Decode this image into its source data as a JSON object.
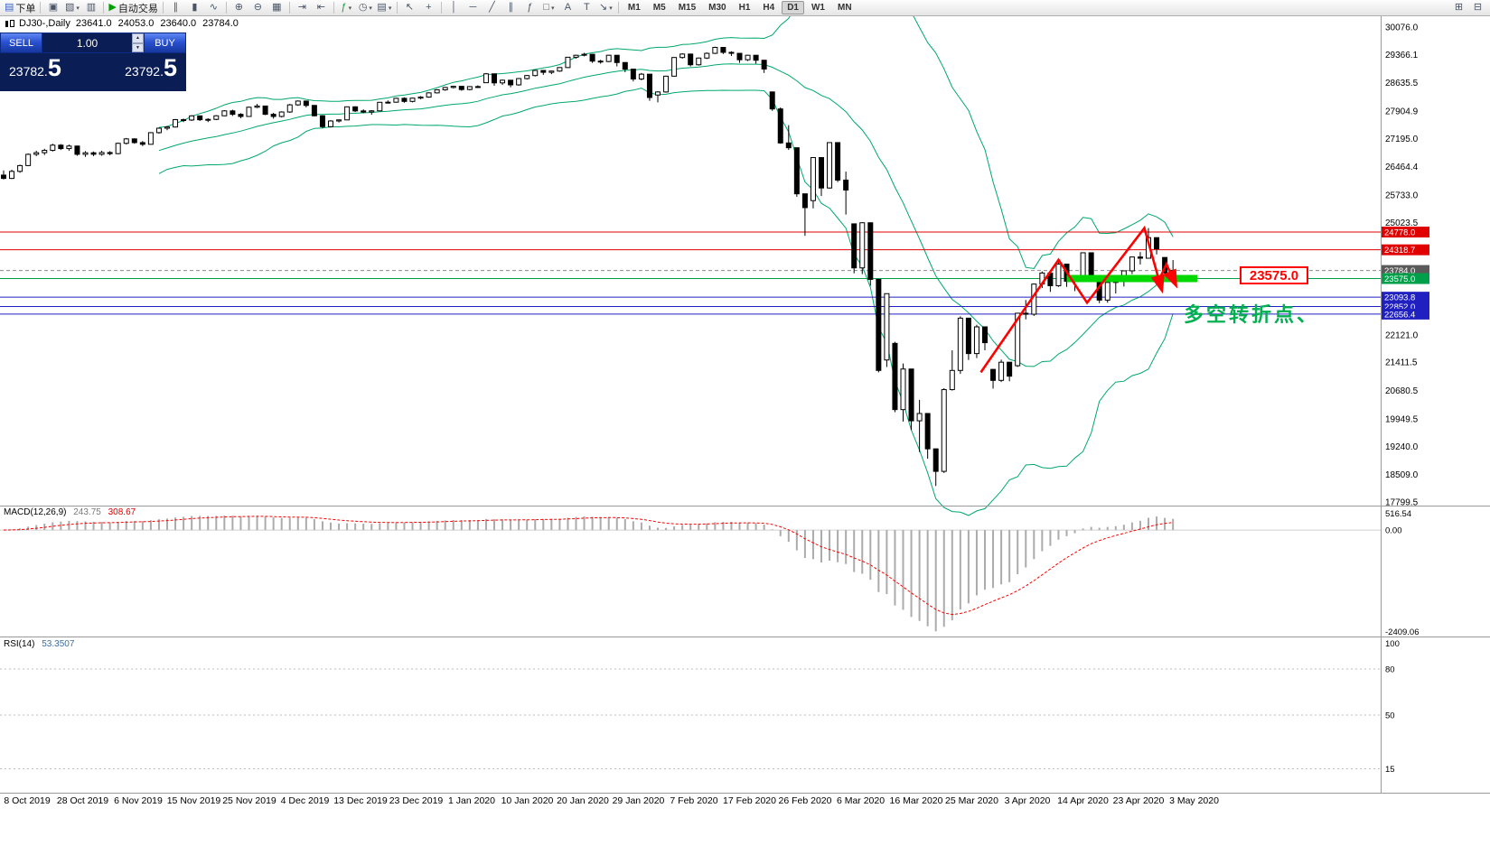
{
  "toolbar": {
    "timeframes": [
      "M1",
      "M5",
      "M15",
      "M30",
      "H1",
      "H4",
      "D1",
      "W1",
      "MN"
    ],
    "active_timeframe": "D1",
    "items": [
      {
        "type": "btn",
        "name": "new-order",
        "icon": "▤",
        "color": "#3a62c8",
        "label": "下单"
      },
      {
        "type": "sep"
      },
      {
        "type": "btn",
        "name": "chart-window",
        "icon": "▣"
      },
      {
        "type": "btn",
        "name": "profiles",
        "icon": "▧",
        "caret": true
      },
      {
        "type": "btn",
        "name": "terminal-window",
        "icon": "▥"
      },
      {
        "type": "sep"
      },
      {
        "type": "btn",
        "name": "autotrading",
        "icon": "▶",
        "color": "#00a000",
        "label": "自动交易"
      },
      {
        "type": "sep"
      },
      {
        "type": "btn",
        "name": "bar-chart",
        "icon": "∥"
      },
      {
        "type": "btn",
        "name": "candlestick-chart",
        "icon": "▮"
      },
      {
        "type": "btn",
        "name": "line-chart",
        "icon": "∿"
      },
      {
        "type": "sep"
      },
      {
        "type": "btn",
        "name": "zoom-in",
        "icon": "⊕"
      },
      {
        "type": "btn",
        "name": "zoom-out",
        "icon": "⊖"
      },
      {
        "type": "btn",
        "name": "tile-windows",
        "icon": "▦"
      },
      {
        "type": "sep"
      },
      {
        "type": "btn",
        "name": "auto-scroll",
        "icon": "⇥"
      },
      {
        "type": "btn",
        "name": "chart-shift",
        "icon": "⇤"
      },
      {
        "type": "sep"
      },
      {
        "type": "btn",
        "name": "indicators",
        "icon": "ƒ",
        "color": "#1c9c3c",
        "caret": true
      },
      {
        "type": "btn",
        "name": "periods",
        "icon": "◷",
        "caret": true
      },
      {
        "type": "btn",
        "name": "templates",
        "icon": "▤",
        "caret": true
      },
      {
        "type": "sep"
      },
      {
        "type": "btn",
        "name": "cursor",
        "icon": "↖"
      },
      {
        "type": "btn",
        "name": "crosshair",
        "icon": "+"
      },
      {
        "type": "sep"
      },
      {
        "type": "btn",
        "name": "vertical-line",
        "icon": "│"
      },
      {
        "type": "btn",
        "name": "horizontal-line",
        "icon": "─"
      },
      {
        "type": "btn",
        "name": "trendline",
        "icon": "╱"
      },
      {
        "type": "btn",
        "name": "equidistant-channel",
        "icon": "∥"
      },
      {
        "type": "btn",
        "name": "fibonacci",
        "icon": "ƒ"
      },
      {
        "type": "btn",
        "name": "shapes",
        "icon": "□",
        "caret": true
      },
      {
        "type": "btn",
        "name": "text",
        "icon": "A"
      },
      {
        "type": "btn",
        "name": "text-label",
        "icon": "T"
      },
      {
        "type": "btn",
        "name": "arrows",
        "icon": "↘",
        "caret": true
      },
      {
        "type": "sep"
      },
      {
        "type": "timeframes"
      },
      {
        "type": "spacer"
      },
      {
        "type": "btn",
        "name": "docking",
        "icon": "⊞"
      },
      {
        "type": "btn",
        "name": "help",
        "icon": "⊟"
      }
    ]
  },
  "chart_header": {
    "symbol": "DJ30-,Daily",
    "open": "23641.0",
    "high": "24053.0",
    "low": "23640.0",
    "close": "23784.0"
  },
  "trade_panel": {
    "sell_label": "SELL",
    "buy_label": "BUY",
    "volume": "1.00",
    "spinner_up": "▲",
    "spinner_down": "▼",
    "sell_price": "23782.",
    "sell_pip": "5",
    "buy_price": "23792.",
    "buy_pip": "5"
  },
  "annotations": {
    "price_callout": "23575.0",
    "turning_point": "多空转折点、"
  },
  "macd_panel": {
    "label": "MACD(12,26,9)",
    "main_value": "243.75",
    "signal_value": "308.67",
    "scale": [
      "516.54",
      "0.00",
      "-2409.06"
    ]
  },
  "rsi_panel": {
    "label": "RSI(14)",
    "value": "53.3507",
    "scale": [
      "100",
      "80",
      "50",
      "15"
    ]
  },
  "chart_data": {
    "type": "candlestick",
    "symbol": "DJ30-",
    "timeframe": "Daily",
    "ylim": [
      17706,
      30403
    ],
    "y_ticks": [
      30076.0,
      29366.1,
      28635.5,
      27904.9,
      27195.0,
      26464.4,
      25733.0,
      25023.5,
      22121.0,
      21411.5,
      20680.5,
      19949.5,
      19240.0,
      18509.0,
      17799.5
    ],
    "price_levels": [
      {
        "value": 24778.0,
        "label": "24778.0",
        "color": "#e00000",
        "type": "line"
      },
      {
        "value": 24318.7,
        "label": "24318.7",
        "color": "#e00000",
        "type": "line"
      },
      {
        "value": 23784.0,
        "label": "23784.0",
        "color": "#5a5a5a",
        "type": "bid"
      },
      {
        "value": 23575.0,
        "label": "23575.0",
        "color": "#00a04a",
        "type": "line"
      },
      {
        "value": 23093.8,
        "label": "23093.8",
        "color": "#2020c0",
        "type": "line"
      },
      {
        "value": 22852.0,
        "label": "22852.0",
        "color": "#2020c0",
        "type": "line"
      },
      {
        "value": 22656.4,
        "label": "22656.4",
        "color": "#2020c0",
        "type": "line"
      }
    ],
    "x_labels": [
      "8 Oct 2019",
      "28 Oct 2019",
      "6 Nov 2019",
      "15 Nov 2019",
      "25 Nov 2019",
      "4 Dec 2019",
      "13 Dec 2019",
      "23 Dec 2019",
      "1 Jan 2020",
      "10 Jan 2020",
      "20 Jan 2020",
      "29 Jan 2020",
      "7 Feb 2020",
      "17 Feb 2020",
      "26 Feb 2020",
      "6 Mar 2020",
      "16 Mar 2020",
      "25 Mar 2020",
      "3 Apr 2020",
      "14 Apr 2020",
      "23 Apr 2020",
      "3 May 2020"
    ],
    "indicators": {
      "bollinger": {
        "period": 20,
        "deviation": 2,
        "color": "#00a86b"
      },
      "macd": {
        "fast": 12,
        "slow": 26,
        "signal": 9,
        "scale_max": 516.54,
        "scale_min": -2409.06,
        "histogram_color": "#ababab",
        "signal_color": "#ff0000"
      },
      "rsi": {
        "period": 14,
        "levels": [
          80,
          50,
          15
        ],
        "color": "#4f81bd"
      }
    },
    "drawings": {
      "support_bar": {
        "price": 23575.0,
        "from_index": 130,
        "to_x": 1325,
        "color": "#00d800"
      },
      "zigzags": [
        {
          "color": "#ff0000",
          "points": [
            [
              119.5,
              21150
            ],
            [
              129,
              24060
            ],
            [
              132.5,
              22950
            ],
            [
              139.5,
              24880
            ],
            [
              141.6,
              23300
            ]
          ]
        },
        {
          "color": "#ff0000",
          "points": [
            [
              141.2,
              23500
            ],
            [
              142.2,
              23950
            ],
            [
              143.3,
              23430
            ]
          ]
        }
      ]
    },
    "candles": [
      [
        26250,
        26370,
        26139,
        26164
      ],
      [
        26164,
        26390,
        26150,
        26346
      ],
      [
        26346,
        26520,
        26310,
        26496
      ],
      [
        26496,
        26810,
        26480,
        26787
      ],
      [
        26787,
        26880,
        26740,
        26829
      ],
      [
        26829,
        26930,
        26770,
        26889
      ],
      [
        26889,
        27060,
        26860,
        27024
      ],
      [
        27024,
        27050,
        26900,
        26935
      ],
      [
        26935,
        27040,
        26880,
        27001
      ],
      [
        27001,
        27010,
        26750,
        26787
      ],
      [
        26787,
        26870,
        26720,
        26827
      ],
      [
        26827,
        26860,
        26740,
        26788
      ],
      [
        26788,
        26880,
        26750,
        26833
      ],
      [
        26833,
        26870,
        26760,
        26805
      ],
      [
        26805,
        27090,
        26790,
        27071
      ],
      [
        27071,
        27210,
        27040,
        27186
      ],
      [
        27186,
        27200,
        27060,
        27090
      ],
      [
        27090,
        27130,
        27000,
        27046
      ],
      [
        27046,
        27360,
        27040,
        27347
      ],
      [
        27347,
        27480,
        27320,
        27462
      ],
      [
        27462,
        27520,
        27410,
        27493
      ],
      [
        27493,
        27700,
        27480,
        27683
      ],
      [
        27683,
        27710,
        27620,
        27674
      ],
      [
        27674,
        27800,
        27650,
        27781
      ],
      [
        27781,
        27790,
        27650,
        27681
      ],
      [
        27681,
        27720,
        27620,
        27691
      ],
      [
        27691,
        27800,
        27670,
        27783
      ],
      [
        27783,
        27930,
        27770,
        27910
      ],
      [
        27910,
        27940,
        27780,
        27821
      ],
      [
        27821,
        27850,
        27720,
        27766
      ],
      [
        27766,
        28020,
        27760,
        28004
      ],
      [
        28004,
        28090,
        27980,
        28036
      ],
      [
        28036,
        28040,
        27800,
        27821
      ],
      [
        27821,
        27860,
        27710,
        27766
      ],
      [
        27766,
        27900,
        27740,
        27881
      ],
      [
        27881,
        28090,
        27860,
        28066
      ],
      [
        28066,
        28180,
        28040,
        28164
      ],
      [
        28164,
        28170,
        28000,
        28051
      ],
      [
        28051,
        28060,
        27770,
        27783
      ],
      [
        27783,
        27800,
        27460,
        27502
      ],
      [
        27502,
        27670,
        27480,
        27649
      ],
      [
        27649,
        27690,
        27610,
        27677
      ],
      [
        27677,
        28020,
        27670,
        28015
      ],
      [
        28015,
        28030,
        27880,
        27909
      ],
      [
        27909,
        27950,
        27850,
        27881
      ],
      [
        27881,
        27930,
        27810,
        27911
      ],
      [
        27911,
        28140,
        27900,
        28132
      ],
      [
        28132,
        28180,
        28100,
        28135
      ],
      [
        28135,
        28250,
        28120,
        28235
      ],
      [
        28235,
        28260,
        28120,
        28155
      ],
      [
        28155,
        28250,
        28130,
        28239
      ],
      [
        28239,
        28290,
        28210,
        28267
      ],
      [
        28267,
        28390,
        28250,
        28376
      ],
      [
        28376,
        28470,
        28360,
        28455
      ],
      [
        28455,
        28530,
        28430,
        28515
      ],
      [
        28515,
        28560,
        28490,
        28545
      ],
      [
        28545,
        28550,
        28430,
        28462
      ],
      [
        28462,
        28550,
        28440,
        28538
      ],
      [
        28538,
        28570,
        28500,
        28538
      ],
      [
        28638,
        28890,
        28630,
        28868
      ],
      [
        28868,
        28870,
        28560,
        28634
      ],
      [
        28634,
        28720,
        28580,
        28703
      ],
      [
        28703,
        28710,
        28520,
        28583
      ],
      [
        28583,
        28760,
        28560,
        28745
      ],
      [
        28745,
        28840,
        28720,
        28823
      ],
      [
        28823,
        28970,
        28800,
        28956
      ],
      [
        28956,
        28960,
        28840,
        28907
      ],
      [
        28907,
        28950,
        28860,
        28939
      ],
      [
        28939,
        29040,
        28920,
        29030
      ],
      [
        29030,
        29300,
        29020,
        29297
      ],
      [
        29297,
        29360,
        29260,
        29348
      ],
      [
        29348,
        29410,
        29320,
        29373
      ],
      [
        29373,
        29380,
        29150,
        29196
      ],
      [
        29196,
        29230,
        29130,
        29186
      ],
      [
        29186,
        29360,
        29170,
        29348
      ],
      [
        29348,
        29350,
        29060,
        29160
      ],
      [
        29160,
        29170,
        28910,
        28989
      ],
      [
        28989,
        29000,
        28670,
        28734
      ],
      [
        28734,
        28890,
        28700,
        28859
      ],
      [
        28859,
        28860,
        28170,
        28256
      ],
      [
        28320,
        28420,
        28130,
        28399
      ],
      [
        28399,
        28820,
        28380,
        28807
      ],
      [
        28807,
        29300,
        28800,
        29290
      ],
      [
        29290,
        29400,
        29260,
        29379
      ],
      [
        29379,
        29390,
        29060,
        29102
      ],
      [
        29102,
        29290,
        29080,
        29276
      ],
      [
        29276,
        29420,
        29250,
        29398
      ],
      [
        29398,
        29570,
        29380,
        29551
      ],
      [
        29551,
        29560,
        29380,
        29423
      ],
      [
        29423,
        29450,
        29330,
        29398
      ],
      [
        29398,
        29400,
        29150,
        29232
      ],
      [
        29232,
        29360,
        29200,
        29348
      ],
      [
        29348,
        29350,
        29130,
        29219
      ],
      [
        29219,
        29230,
        28890,
        28992
      ],
      [
        28400,
        28410,
        27910,
        27960
      ],
      [
        27960,
        28000,
        27060,
        27081
      ],
      [
        27081,
        27540,
        26900,
        26957
      ],
      [
        26957,
        26960,
        25690,
        25766
      ],
      [
        25766,
        25770,
        24680,
        25409
      ],
      [
        25590,
        26710,
        25390,
        26703
      ],
      [
        26703,
        26710,
        25710,
        25917
      ],
      [
        25917,
        27100,
        25900,
        27090
      ],
      [
        27090,
        27100,
        26070,
        26121
      ],
      [
        26121,
        26340,
        25230,
        25864
      ],
      [
        24990,
        25000,
        23710,
        23851
      ],
      [
        23851,
        25030,
        23690,
        25018
      ],
      [
        25018,
        25020,
        23390,
        23553
      ],
      [
        23553,
        23560,
        21150,
        21200
      ],
      [
        21470,
        23190,
        21290,
        23185
      ],
      [
        21900,
        21940,
        20120,
        20188
      ],
      [
        20188,
        21380,
        19880,
        21237
      ],
      [
        21237,
        21240,
        19660,
        19898
      ],
      [
        19898,
        20440,
        19090,
        20087
      ],
      [
        20087,
        20090,
        18920,
        19173
      ],
      [
        19173,
        19180,
        18213,
        18591
      ],
      [
        18591,
        20740,
        18550,
        20704
      ],
      [
        20704,
        21720,
        20680,
        21200
      ],
      [
        21200,
        22600,
        21110,
        22552
      ],
      [
        22552,
        22560,
        21470,
        21636
      ],
      [
        21636,
        22380,
        21520,
        22327
      ],
      [
        22327,
        22330,
        21720,
        21917
      ],
      [
        21227,
        21240,
        20730,
        20943
      ],
      [
        20943,
        21480,
        20900,
        21413
      ],
      [
        21413,
        21420,
        20920,
        21052
      ],
      [
        21322,
        22680,
        21290,
        22679
      ],
      [
        22679,
        23020,
        22520,
        22653
      ],
      [
        22653,
        23440,
        22610,
        23433
      ],
      [
        23433,
        23760,
        23330,
        23719
      ],
      [
        23719,
        23720,
        23230,
        23390
      ],
      [
        23390,
        24010,
        23360,
        23949
      ],
      [
        23949,
        23950,
        23360,
        23504
      ],
      [
        23504,
        23580,
        23250,
        23537
      ],
      [
        23537,
        24250,
        23530,
        24242
      ],
      [
        24242,
        24250,
        23570,
        23650
      ],
      [
        23650,
        23660,
        22940,
        23018
      ],
      [
        23018,
        23490,
        22950,
        23475
      ],
      [
        23475,
        23520,
        23190,
        23515
      ],
      [
        23515,
        23780,
        23370,
        23775
      ],
      [
        23775,
        24140,
        23690,
        24133
      ],
      [
        24133,
        24260,
        23940,
        24101
      ],
      [
        24101,
        24880,
        24090,
        24633
      ],
      [
        24633,
        24640,
        24200,
        24345
      ],
      [
        24120,
        24130,
        23640,
        23723
      ],
      [
        23641,
        24053,
        23640,
        23784
      ]
    ]
  }
}
